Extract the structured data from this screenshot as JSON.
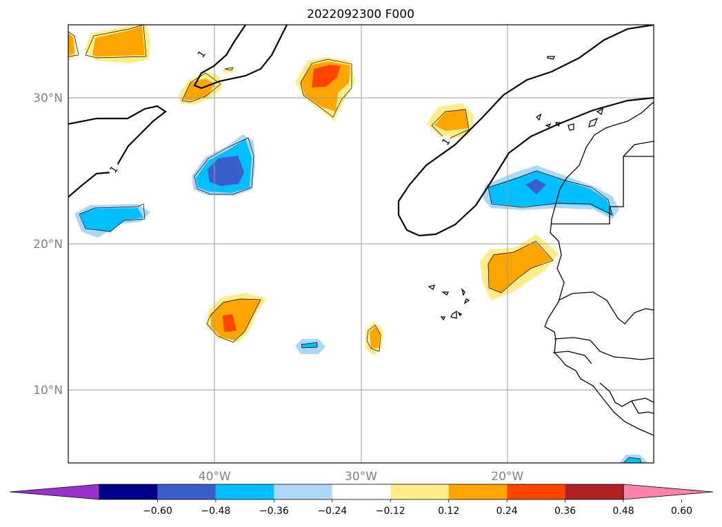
{
  "title": "2022092300 F000",
  "axes": {
    "lon_range": [
      -50,
      -10
    ],
    "lat_range": [
      5,
      35
    ],
    "lat_ticks": [
      {
        "value": 30,
        "label": "30°N"
      },
      {
        "value": 20,
        "label": "20°N"
      },
      {
        "value": 10,
        "label": "10°N"
      }
    ],
    "lon_ticks": [
      {
        "value": -40,
        "label": "40°W"
      },
      {
        "value": -30,
        "label": "30°W"
      },
      {
        "value": -20,
        "label": "20°W"
      }
    ],
    "gridlines": true
  },
  "contour_labels": [
    {
      "text": "1",
      "lon": -40.9,
      "lat": 33.0
    },
    {
      "text": "1",
      "lon": -46.9,
      "lat": 25.1
    },
    {
      "text": "1",
      "lon": -24.2,
      "lat": 27.0
    }
  ],
  "colorbar": {
    "extend": "both",
    "ticks": [
      "−0.60",
      "−0.48",
      "−0.36",
      "−0.24",
      "−0.12",
      "0.12",
      "0.24",
      "0.36",
      "0.48",
      "0.60"
    ],
    "colors": [
      "#9932cc",
      "#00008b",
      "#3a5fcd",
      "#00bfff",
      "#add8f5",
      "#ffffff",
      "#ffec8b",
      "#ffa500",
      "#ff4500",
      "#b22222",
      "#ff82ab"
    ]
  },
  "anomaly_levels": [
    -0.6,
    -0.48,
    -0.36,
    -0.24,
    -0.12,
    0.12,
    0.24,
    0.36,
    0.48,
    0.6
  ],
  "anomaly_centers": [
    {
      "lon": -38.9,
      "lat": 15.2,
      "peak": 0.4
    },
    {
      "lon": -33.1,
      "lat": 31.4,
      "peak": 0.42
    },
    {
      "lon": -19.0,
      "lat": 18.5,
      "peak": 0.36
    },
    {
      "lon": -43.6,
      "lat": 33.7,
      "peak": 0.34
    },
    {
      "lon": -24.0,
      "lat": 28.0,
      "peak": 0.33
    },
    {
      "lon": -40.7,
      "lat": 31.0,
      "peak": 0.3
    },
    {
      "lon": -29.2,
      "lat": 13.5,
      "peak": 0.3
    },
    {
      "lon": -39.6,
      "lat": 25.0,
      "peak": -0.4
    },
    {
      "lon": -17.9,
      "lat": 23.9,
      "peak": -0.38
    },
    {
      "lon": -46.5,
      "lat": 21.7,
      "peak": -0.3
    },
    {
      "lon": -33.6,
      "lat": 13.0,
      "peak": -0.28
    }
  ]
}
